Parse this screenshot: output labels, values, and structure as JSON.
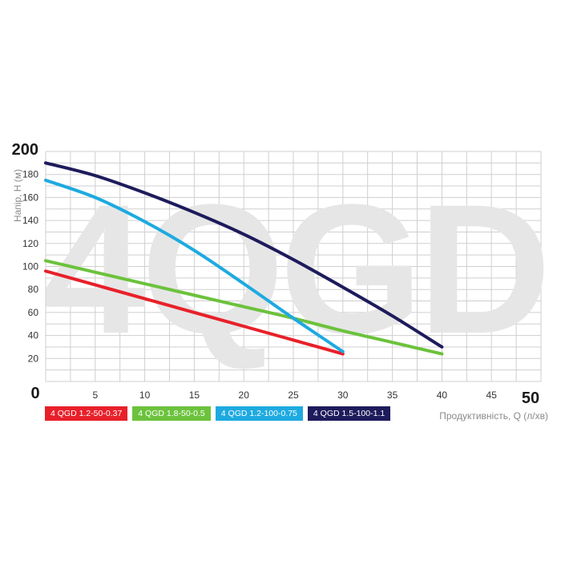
{
  "chart_data": {
    "type": "line",
    "watermark": "4QGD",
    "ylabel": "Напір, Н (м)",
    "xlabel": "Продуктивність, Q (л/хв)",
    "xlim": [
      0,
      50
    ],
    "ylim": [
      0,
      200
    ],
    "x_ticks": [
      "5",
      "10",
      "15",
      "20",
      "25",
      "30",
      "35",
      "40",
      "45"
    ],
    "y_ticks": [
      "20",
      "40",
      "60",
      "80",
      "100",
      "120",
      "140",
      "160",
      "180"
    ],
    "x_tick_values": [
      5,
      10,
      15,
      20,
      25,
      30,
      35,
      40,
      45
    ],
    "y_tick_values": [
      20,
      40,
      60,
      80,
      100,
      120,
      140,
      160,
      180
    ],
    "x_max_label": "50",
    "y_max_label": "200",
    "origin_label": "0",
    "grid": true,
    "legend_position": "bottom-left",
    "series": [
      {
        "name": "4 QGD 1.2-50-0.37",
        "color": "#e8202a",
        "x": [
          0,
          5,
          10,
          15,
          20,
          25,
          30
        ],
        "y": [
          96,
          84,
          72,
          60,
          48,
          36,
          24
        ]
      },
      {
        "name": "4 QGD 1.8-50-0.5",
        "color": "#6cc23c",
        "x": [
          0,
          5,
          10,
          15,
          20,
          25,
          30,
          35,
          40
        ],
        "y": [
          105,
          95,
          85,
          75,
          65,
          55,
          44,
          34,
          24
        ]
      },
      {
        "name": "4 QGD 1.2-100-0.75",
        "color": "#1eaae0",
        "x": [
          0,
          5,
          10,
          15,
          20,
          25,
          30
        ],
        "y": [
          175,
          160,
          139,
          114,
          85,
          55,
          26
        ]
      },
      {
        "name": "4 QGD 1.5-100-1.1",
        "color": "#1e1b5c",
        "x": [
          0,
          5,
          10,
          15,
          20,
          25,
          30,
          35,
          40
        ],
        "y": [
          190,
          179,
          164,
          147,
          128,
          106,
          82,
          57,
          30
        ]
      }
    ]
  }
}
